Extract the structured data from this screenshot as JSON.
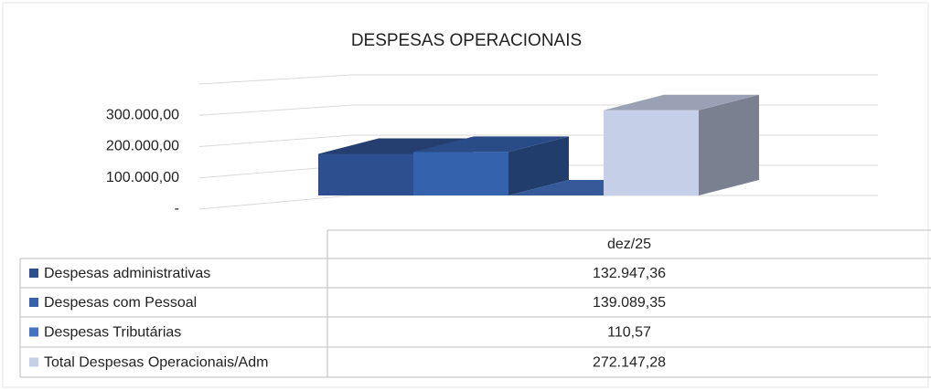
{
  "chart_data": {
    "type": "bar3d",
    "title": "DESPESAS OPERACIONAIS",
    "categories": [
      "dez/25"
    ],
    "series": [
      {
        "name": "Despesas administrativas",
        "color": "#2e4f8f",
        "values": [
          132947.36
        ],
        "value_labels": [
          "132.947,36"
        ]
      },
      {
        "name": "Despesas com Pessoal",
        "color": "#3462ad",
        "values": [
          139089.35
        ],
        "value_labels": [
          "139.089,35"
        ]
      },
      {
        "name": "Despesas Tributárias",
        "color": "#4472c4",
        "values": [
          110.57
        ],
        "value_labels": [
          "110,57"
        ]
      },
      {
        "name": "Total Despesas Operacionais/Adm",
        "color": "#c5cfe7",
        "values": [
          272147.28
        ],
        "value_labels": [
          "272.147,28"
        ]
      }
    ],
    "ylim": [
      0,
      400000
    ],
    "yticks": [
      {
        "value": 0,
        "label": "-"
      },
      {
        "value": 100000,
        "label": "100.000,00"
      },
      {
        "value": 200000,
        "label": "200.000,00"
      },
      {
        "value": 300000,
        "label": "300.000,00"
      }
    ],
    "grid": true,
    "legend": "table"
  }
}
